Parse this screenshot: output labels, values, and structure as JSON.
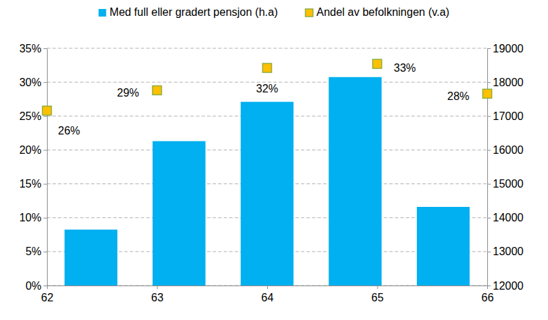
{
  "chart_data": {
    "type": "bar",
    "x": [
      62,
      63,
      64,
      65,
      66
    ],
    "xlim": [
      62,
      66
    ],
    "xticks": [
      62,
      63,
      64,
      65,
      66
    ],
    "ylim": [
      0,
      35
    ],
    "yticks": [
      {
        "value": 0,
        "label": "0%"
      },
      {
        "value": 5,
        "label": "5%"
      },
      {
        "value": 10,
        "label": "10%"
      },
      {
        "value": 15,
        "label": "15%"
      },
      {
        "value": 20,
        "label": "20%"
      },
      {
        "value": 25,
        "label": "25%"
      },
      {
        "value": 30,
        "label": "30%"
      },
      {
        "value": 35,
        "label": "35%"
      }
    ],
    "y2lim": [
      12000,
      19000
    ],
    "y2ticks": [
      12000,
      13000,
      14000,
      15000,
      16000,
      17000,
      18000,
      19000
    ],
    "grid": true,
    "legend": "top",
    "data_labels": true,
    "series": [
      {
        "name": "Med full eller gradert pensjon (h.a)",
        "type": "bar",
        "axis": "y2",
        "color": "#00b0f0",
        "values": [
          13650,
          16260,
          17420,
          18150,
          14320
        ]
      },
      {
        "name": "Andel av befolkningen (v.a)",
        "type": "scatter",
        "axis": "y",
        "marker": "square",
        "color": "#ffc000",
        "values": [
          25.8,
          28.8,
          32.1,
          32.7,
          28.3
        ],
        "value_labels": [
          "26%",
          "29%",
          "32%",
          "33%",
          "28%"
        ]
      }
    ]
  }
}
